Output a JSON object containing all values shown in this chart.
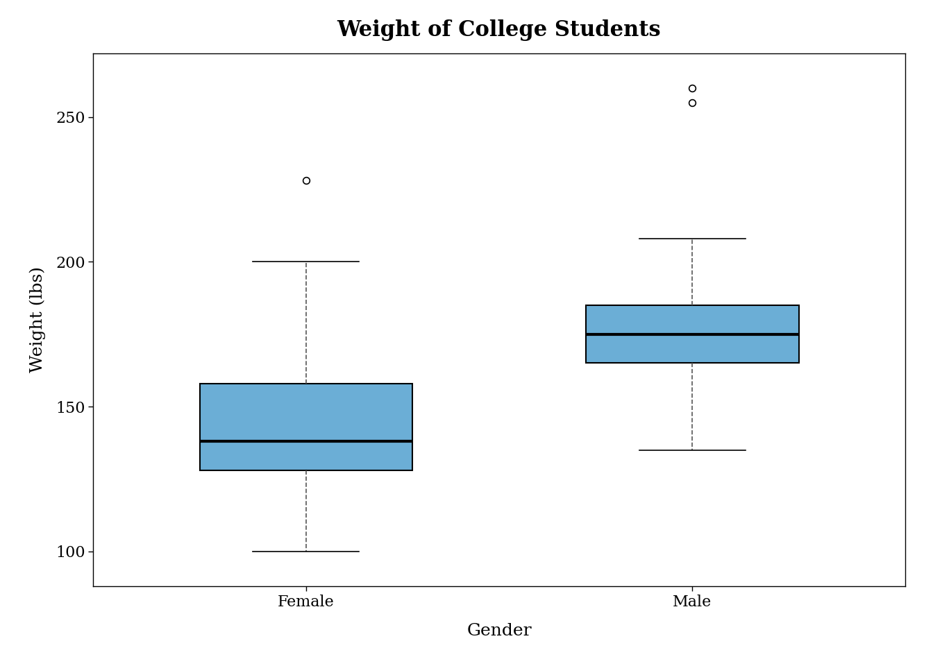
{
  "title": "Weight of College Students",
  "xlabel": "Gender",
  "ylabel": "Weight (lbs)",
  "background_color": "#ffffff",
  "plot_bg_color": "#ffffff",
  "box_color": "#6BAED6",
  "box_edge_color": "#000000",
  "whisker_color": "#555555",
  "median_color": "#000000",
  "outlier_color": "#000000",
  "categories": [
    "Female",
    "Male"
  ],
  "female": {
    "q1": 128,
    "median": 138,
    "q3": 158,
    "whisker_low": 100,
    "whisker_high": 200,
    "outliers": [
      228
    ]
  },
  "male": {
    "q1": 165,
    "median": 175,
    "q3": 185,
    "whisker_low": 135,
    "whisker_high": 208,
    "outliers": [
      255,
      260
    ]
  },
  "ylim": [
    88,
    272
  ],
  "yticks": [
    100,
    150,
    200,
    250
  ],
  "title_fontsize": 22,
  "label_fontsize": 18,
  "tick_fontsize": 16,
  "box_width": 0.55,
  "linewidth": 1.5,
  "median_linewidth": 3.0,
  "whisker_linewidth": 1.2,
  "cap_linewidth": 1.2,
  "whisker_linestyle": "--"
}
